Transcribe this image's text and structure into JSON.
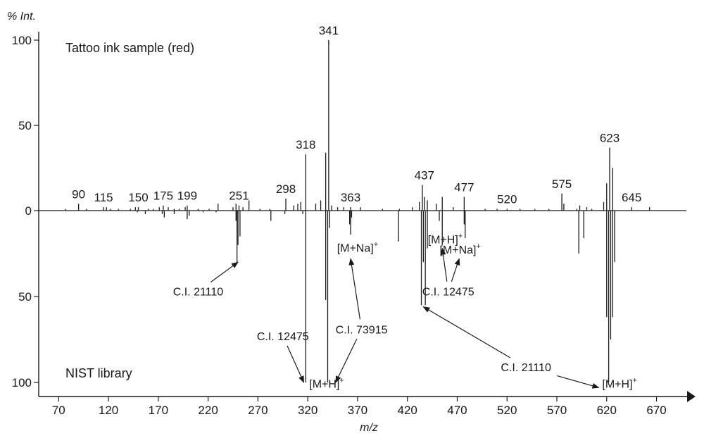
{
  "chart_data": {
    "type": "bar",
    "subtype": "mirror-mass-spectrum",
    "xlabel": "m/z",
    "ylabel": "% Int.",
    "xlim": [
      50,
      700
    ],
    "ylim_top": [
      0,
      100
    ],
    "ylim_bottom": [
      0,
      100
    ],
    "x_ticks": [
      70,
      120,
      170,
      220,
      270,
      320,
      370,
      420,
      470,
      520,
      570,
      620,
      670
    ],
    "y_ticks_top": [
      0,
      50,
      100
    ],
    "y_ticks_bottom": [
      50,
      100
    ],
    "grid": false,
    "colors": {
      "line": "#1a1a1a",
      "background": "#ffffff"
    },
    "series": [
      {
        "name": "Tattoo ink sample (red)",
        "direction": "up",
        "x": [
          77,
          90,
          98,
          115,
          118,
          122,
          130,
          142,
          147,
          150,
          160,
          165,
          171,
          175,
          180,
          186,
          191,
          197,
          199,
          210,
          221,
          230,
          245,
          248,
          251,
          255,
          261,
          272,
          282,
          298,
          306,
          310,
          313,
          318,
          328,
          333,
          338,
          341,
          344,
          350,
          356,
          363,
          373,
          395,
          412,
          425,
          432,
          435,
          437,
          440,
          449,
          455,
          466,
          477,
          498,
          510,
          520,
          533,
          548,
          562,
          575,
          577,
          590,
          593,
          600,
          605,
          617,
          620,
          623,
          626,
          645,
          663
        ],
        "y": [
          1,
          4,
          1,
          2,
          2,
          1,
          1,
          1,
          2,
          2,
          1,
          1,
          2,
          3,
          2,
          1,
          1,
          2,
          3,
          1,
          1,
          4,
          2,
          4,
          3,
          2,
          6,
          1,
          1,
          7,
          3,
          4,
          5,
          33,
          4,
          6,
          34,
          100,
          3,
          2,
          2,
          2,
          2,
          1,
          1,
          2,
          5,
          15,
          8,
          6,
          4,
          8,
          2,
          8,
          1,
          1,
          1,
          1,
          1,
          1,
          10,
          4,
          1,
          3,
          2,
          1,
          5,
          16,
          37,
          25,
          2,
          2
        ]
      },
      {
        "name": "NIST library",
        "direction": "down",
        "x": [
          149,
          157,
          174,
          176,
          186,
          199,
          201,
          215,
          228,
          248,
          249,
          250,
          252,
          283,
          297,
          315,
          318,
          338,
          340,
          342,
          362,
          363,
          364,
          411,
          434,
          436,
          438,
          440,
          452,
          455,
          477,
          478,
          592,
          597,
          620,
          622,
          624,
          626,
          628
        ],
        "y": [
          1,
          2,
          2,
          4,
          2,
          5,
          3,
          1,
          1,
          6,
          30,
          20,
          15,
          6,
          2,
          2,
          100,
          52,
          100,
          10,
          8,
          14,
          4,
          18,
          55,
          30,
          55,
          22,
          6,
          20,
          8,
          16,
          25,
          16,
          62,
          100,
          75,
          62,
          30
        ]
      }
    ],
    "peak_labels_top": [
      {
        "mz": 90,
        "text": "90"
      },
      {
        "mz": 115,
        "text": "115"
      },
      {
        "mz": 150,
        "text": "150"
      },
      {
        "mz": 175,
        "text": "175"
      },
      {
        "mz": 199,
        "text": "199"
      },
      {
        "mz": 251,
        "text": "251"
      },
      {
        "mz": 298,
        "text": "298"
      },
      {
        "mz": 318,
        "text": "318"
      },
      {
        "mz": 341,
        "text": "341"
      },
      {
        "mz": 363,
        "text": "363"
      },
      {
        "mz": 437,
        "text": "437"
      },
      {
        "mz": 477,
        "text": "477"
      },
      {
        "mz": 520,
        "text": "520"
      },
      {
        "mz": 575,
        "text": "575"
      },
      {
        "mz": 623,
        "text": "623"
      },
      {
        "mz": 645,
        "text": "645"
      }
    ],
    "panel_labels": {
      "top": "Tattoo ink sample (red)",
      "bottom": "NIST library"
    },
    "annotations": [
      {
        "text": "C.I. 21110",
        "at": [
          210,
          47
        ],
        "arrow_to": [
          250,
          30
        ]
      },
      {
        "text": "C.I. 12475",
        "at": [
          295,
          73
        ],
        "arrow_to": [
          316,
          100
        ]
      },
      {
        "text": "C.I. 73915",
        "at": [
          374,
          69
        ],
        "arrow_to": [
          363,
          28
        ]
      },
      {
        "text": "C.I. 73915",
        "at": [
          374,
          69
        ],
        "arrow_to": [
          348,
          100
        ],
        "draw_text": false
      },
      {
        "text": "C.I. 12475",
        "at": [
          461,
          47
        ],
        "arrow_to": [
          455,
          22
        ]
      },
      {
        "text": "C.I. 12475",
        "at": [
          461,
          47
        ],
        "arrow_to": [
          472,
          28
        ],
        "draw_text": false
      },
      {
        "text": "C.I. 21110",
        "at": [
          539,
          91
        ],
        "arrow_to": [
          436,
          56
        ]
      },
      {
        "text": "C.I. 21110",
        "at": [
          539,
          91
        ],
        "arrow_to": [
          612,
          103
        ],
        "draw_text": false
      }
    ],
    "ion_labels": [
      {
        "main": "[M+Na]",
        "sup": "+",
        "mz": 370,
        "level": 24
      },
      {
        "main": "[M+H]",
        "sup": "+",
        "mz": 458,
        "level": 19
      },
      {
        "main": "[M+Na]",
        "sup": "+",
        "mz": 473,
        "level": 25
      },
      {
        "main": "[M+H]",
        "sup": "+",
        "mz": 339,
        "level": 103
      },
      {
        "main": "[M+H]",
        "sup": "+",
        "mz": 633,
        "level": 103
      }
    ]
  }
}
